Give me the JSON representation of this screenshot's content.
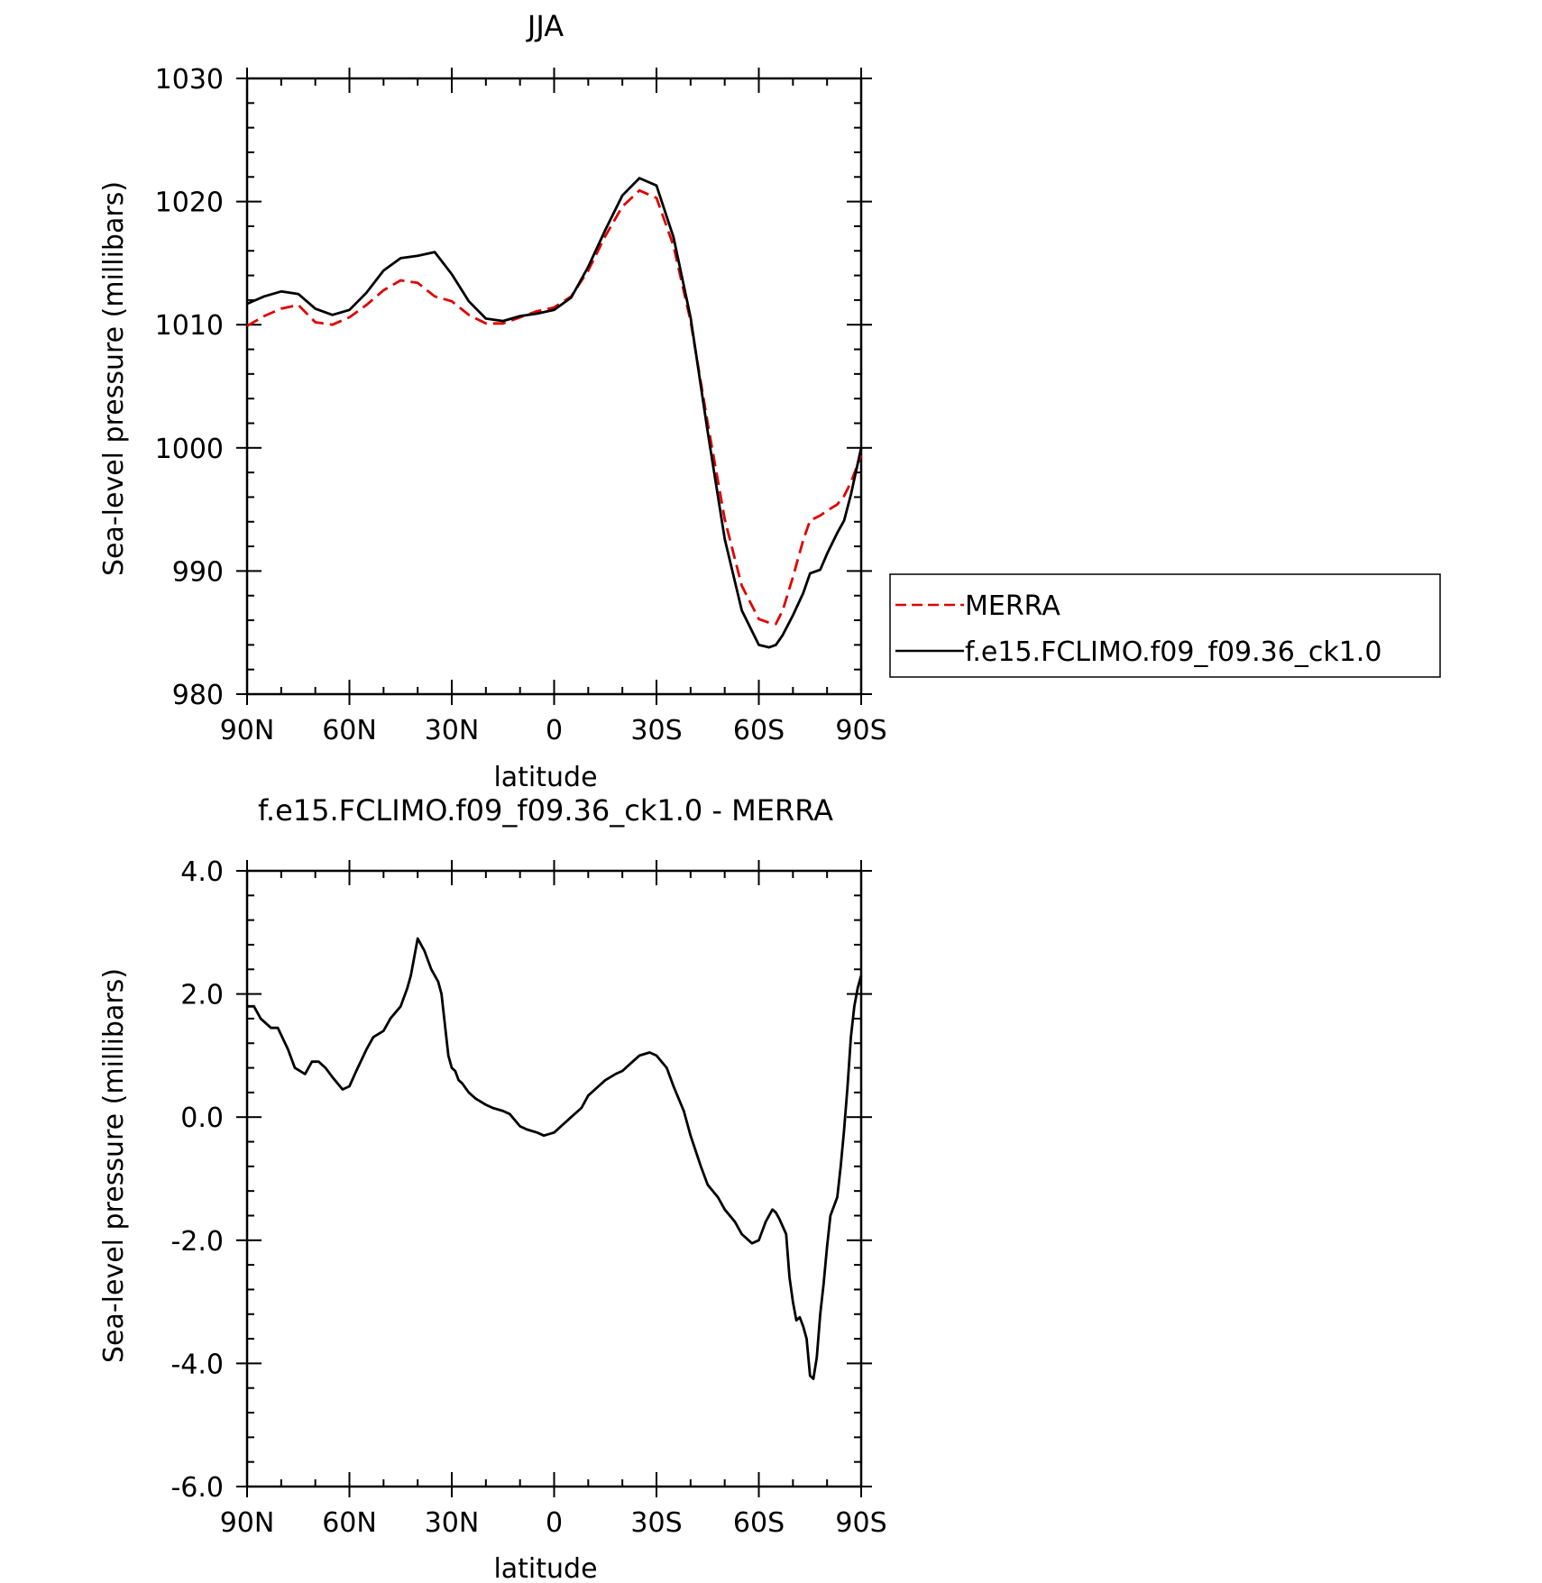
{
  "chart_data": [
    {
      "type": "line",
      "title": "JJA",
      "xlabel": "latitude",
      "ylabel": "Sea-level pressure (millibars)",
      "xlim": [
        90,
        -90
      ],
      "ylim": [
        980,
        1030
      ],
      "xticks": [
        90,
        60,
        30,
        0,
        -30,
        -60,
        -90
      ],
      "xtick_labels": [
        "90N",
        "60N",
        "30N",
        "0",
        "30S",
        "60S",
        "90S"
      ],
      "yticks": [
        980,
        990,
        1000,
        1010,
        1020,
        1030
      ],
      "ytick_labels": [
        "980",
        "990",
        "1000",
        "1010",
        "1020",
        "1030"
      ],
      "grid": false,
      "legend": {
        "placement": "right",
        "entries": [
          "MERRA",
          "f.e15.FCLIMO.f09_f09.36_ck1.0"
        ]
      },
      "series": [
        {
          "name": "MERRA",
          "color": "#e00000",
          "dash": "dashed",
          "x": [
            90,
            85,
            80,
            75,
            70,
            65,
            60,
            55,
            50,
            45,
            40,
            35,
            30,
            25,
            20,
            15,
            10,
            5,
            0,
            -5,
            -10,
            -15,
            -20,
            -25,
            -30,
            -35,
            -40,
            -45,
            -50,
            -55,
            -60,
            -63,
            -65,
            -67,
            -70,
            -73,
            -75,
            -78,
            -80,
            -83,
            -85,
            -87,
            -90
          ],
          "y": [
            1009.9,
            1010.7,
            1011.3,
            1011.6,
            1010.2,
            1010.0,
            1010.6,
            1011.6,
            1012.8,
            1013.6,
            1013.4,
            1012.3,
            1011.9,
            1010.8,
            1010.1,
            1010.1,
            1010.6,
            1011.1,
            1011.4,
            1012.3,
            1014.4,
            1017.2,
            1019.6,
            1020.9,
            1020.3,
            1016.4,
            1010.3,
            1002.0,
            994.2,
            988.8,
            986.1,
            985.8,
            985.7,
            986.8,
            989.5,
            992.5,
            994.1,
            994.5,
            994.9,
            995.4,
            996.1,
            997.2,
            999.4
          ]
        },
        {
          "name": "f.e15.FCLIMO.f09_f09.36_ck1.0",
          "color": "#000000",
          "dash": "solid",
          "x": [
            90,
            85,
            80,
            75,
            70,
            65,
            60,
            55,
            50,
            45,
            40,
            35,
            30,
            25,
            20,
            15,
            10,
            5,
            0,
            -5,
            -10,
            -15,
            -20,
            -25,
            -30,
            -35,
            -40,
            -45,
            -50,
            -55,
            -60,
            -63,
            -65,
            -67,
            -70,
            -73,
            -75,
            -78,
            -80,
            -83,
            -85,
            -87,
            -90
          ],
          "y": [
            1011.7,
            1012.3,
            1012.7,
            1012.5,
            1011.3,
            1010.8,
            1011.2,
            1012.6,
            1014.4,
            1015.4,
            1015.6,
            1015.9,
            1014.1,
            1011.9,
            1010.5,
            1010.3,
            1010.7,
            1010.9,
            1011.2,
            1012.2,
            1014.7,
            1017.7,
            1020.5,
            1021.9,
            1021.3,
            1017.1,
            1010.6,
            1001.3,
            992.6,
            986.8,
            984.0,
            983.8,
            984.0,
            984.8,
            986.4,
            988.2,
            989.8,
            990.1,
            991.4,
            993.1,
            994.1,
            996.2,
            1000.0
          ]
        }
      ]
    },
    {
      "type": "line",
      "title": "f.e15.FCLIMO.f09_f09.36_ck1.0 - MERRA",
      "xlabel": "latitude",
      "ylabel": "Sea-level pressure (millibars)",
      "xlim": [
        90,
        -90
      ],
      "ylim": [
        -6.0,
        4.0
      ],
      "xticks": [
        90,
        60,
        30,
        0,
        -30,
        -60,
        -90
      ],
      "xtick_labels": [
        "90N",
        "60N",
        "30N",
        "0",
        "30S",
        "60S",
        "90S"
      ],
      "yticks": [
        -6.0,
        -4.0,
        -2.0,
        0.0,
        2.0,
        4.0
      ],
      "ytick_labels": [
        "-6.0",
        "-4.0",
        "-2.0",
        "0.0",
        "2.0",
        "4.0"
      ],
      "grid": false,
      "series": [
        {
          "color": "#000000",
          "dash": "solid",
          "x": [
            90,
            88,
            86,
            83,
            81,
            78,
            76,
            73,
            71,
            69,
            67,
            65,
            62,
            60,
            58,
            55,
            53,
            50,
            48,
            45,
            43,
            42,
            40,
            38,
            36,
            35,
            34,
            33,
            31,
            30,
            29,
            28,
            27,
            25,
            23,
            20,
            18,
            15,
            13,
            10,
            8,
            5,
            3,
            0,
            -3,
            -5,
            -8,
            -10,
            -13,
            -15,
            -18,
            -20,
            -23,
            -25,
            -28,
            -30,
            -33,
            -35,
            -38,
            -40,
            -43,
            -45,
            -48,
            -50,
            -53,
            -55,
            -58,
            -60,
            -62,
            -64,
            -65,
            -66,
            -68,
            -69,
            -70,
            -71,
            -72,
            -73,
            -74,
            -75,
            -76,
            -77,
            -78,
            -79,
            -80,
            -81,
            -83,
            -84,
            -85,
            -86,
            -87,
            -88,
            -89,
            -90
          ],
          "y": [
            1.8,
            1.8,
            1.6,
            1.45,
            1.45,
            1.1,
            0.8,
            0.7,
            0.9,
            0.9,
            0.8,
            0.65,
            0.45,
            0.5,
            0.75,
            1.1,
            1.3,
            1.4,
            1.6,
            1.8,
            2.1,
            2.3,
            2.9,
            2.7,
            2.4,
            2.3,
            2.2,
            2.0,
            1.0,
            0.8,
            0.75,
            0.6,
            0.55,
            0.4,
            0.3,
            0.2,
            0.15,
            0.1,
            0.05,
            -0.15,
            -0.2,
            -0.25,
            -0.3,
            -0.25,
            -0.1,
            0.0,
            0.15,
            0.35,
            0.5,
            0.6,
            0.7,
            0.75,
            0.9,
            1.0,
            1.05,
            1.0,
            0.8,
            0.5,
            0.1,
            -0.3,
            -0.8,
            -1.1,
            -1.3,
            -1.5,
            -1.7,
            -1.9,
            -2.05,
            -2.0,
            -1.7,
            -1.5,
            -1.55,
            -1.65,
            -1.9,
            -2.6,
            -3.0,
            -3.3,
            -3.25,
            -3.4,
            -3.6,
            -4.2,
            -4.25,
            -3.9,
            -3.2,
            -2.7,
            -2.1,
            -1.6,
            -1.3,
            -0.8,
            -0.2,
            0.5,
            1.3,
            1.8,
            2.1,
            2.3
          ]
        }
      ]
    }
  ]
}
